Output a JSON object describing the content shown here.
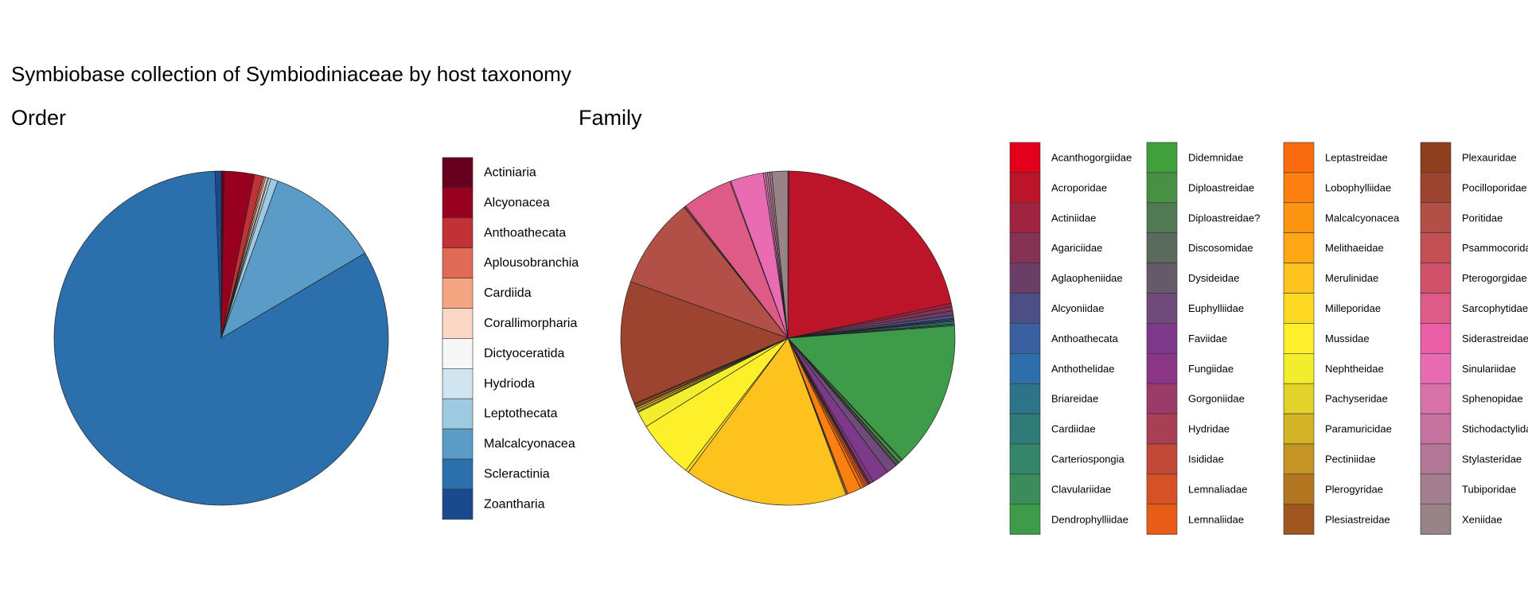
{
  "title": "Symbiobase collection of Symbiodiniaceae by host taxonomy",
  "chart_data": [
    {
      "type": "pie",
      "title": "Order",
      "legend_placement": "right",
      "slices": [
        {
          "label": "Actiniaria",
          "value": 0.3,
          "color": "#67001f"
        },
        {
          "label": "Alcyonacea",
          "value": 2.9,
          "color": "#98001f"
        },
        {
          "label": "Anthoathecata",
          "value": 0.8,
          "color": "#c13236"
        },
        {
          "label": "Aplousobranchia",
          "value": 0.15,
          "color": "#df6a55"
        },
        {
          "label": "Cardiida",
          "value": 0.15,
          "color": "#f4a582"
        },
        {
          "label": "Corallimorpharia",
          "value": 0.2,
          "color": "#fbd7c4"
        },
        {
          "label": "Dictyoceratida",
          "value": 0.1,
          "color": "#f7f7f7"
        },
        {
          "label": "Hydrioda",
          "value": 0.2,
          "color": "#d1e5f0"
        },
        {
          "label": "Leptothecata",
          "value": 0.7,
          "color": "#9ecae1"
        },
        {
          "label": "Malcalcyonacea",
          "value": 11.0,
          "color": "#5b9bc8"
        },
        {
          "label": "Scleractinia",
          "value": 82.9,
          "color": "#2c6fad"
        },
        {
          "label": "Zoantharia",
          "value": 0.6,
          "color": "#1a4a8e"
        }
      ]
    },
    {
      "type": "pie",
      "title": "Family",
      "legend_placement": "right",
      "slices": [
        {
          "label": "Acanthogorgiidae",
          "value": 0.1,
          "color": "#e3001b"
        },
        {
          "label": "Acroporidae",
          "value": 21.0,
          "color": "#bc1428"
        },
        {
          "label": "Actiniidae",
          "value": 0.3,
          "color": "#a02341"
        },
        {
          "label": "Agariciidae",
          "value": 0.4,
          "color": "#853255"
        },
        {
          "label": "Aglaopheniidae",
          "value": 0.4,
          "color": "#6a3e67"
        },
        {
          "label": "Alcyoniidae",
          "value": 0.3,
          "color": "#4d4e85"
        },
        {
          "label": "Anthoathecata",
          "value": 0.1,
          "color": "#3a60a2"
        },
        {
          "label": "Anthothelidae",
          "value": 0.1,
          "color": "#2c6fab"
        },
        {
          "label": "Briareidae",
          "value": 0.1,
          "color": "#2d7389"
        },
        {
          "label": "Cardiidae",
          "value": 0.2,
          "color": "#2f7b78"
        },
        {
          "label": "Carteriospongia",
          "value": 0.1,
          "color": "#35856a"
        },
        {
          "label": "Clavulariidae",
          "value": 0.1,
          "color": "#3a8d5a"
        },
        {
          "label": "Dendrophylliidae",
          "value": 13.8,
          "color": "#3d9b4a"
        },
        {
          "label": "Didemnidae",
          "value": 0.1,
          "color": "#3fa03c"
        },
        {
          "label": "Diploastreidae",
          "value": 0.3,
          "color": "#489043"
        },
        {
          "label": "Diploastreidae?",
          "value": 0.1,
          "color": "#517a54"
        },
        {
          "label": "Discosomidae",
          "value": 0.2,
          "color": "#5b6a5e"
        },
        {
          "label": "Dysideidae",
          "value": 0.1,
          "color": "#655a68"
        },
        {
          "label": "Euphylliidae",
          "value": 1.0,
          "color": "#704a7a"
        },
        {
          "label": "Faviidae",
          "value": 1.6,
          "color": "#7d3a8a"
        },
        {
          "label": "Fungiidae",
          "value": 0.3,
          "color": "#8a3585"
        },
        {
          "label": "Gorgoniidae",
          "value": 0.1,
          "color": "#9a3b6a"
        },
        {
          "label": "Hydridae",
          "value": 0.1,
          "color": "#a93f55"
        },
        {
          "label": "Isididae",
          "value": 0.1,
          "color": "#c24838"
        },
        {
          "label": "Lemnaliadae",
          "value": 0.2,
          "color": "#d75126"
        },
        {
          "label": "Lemnaliidae",
          "value": 0.2,
          "color": "#e95c17"
        },
        {
          "label": "Leptastreidae",
          "value": 0.3,
          "color": "#fa6b0e"
        },
        {
          "label": "Lobophylliidae",
          "value": 1.3,
          "color": "#fb800f"
        },
        {
          "label": "Malcalcyonacea",
          "value": 0.1,
          "color": "#fc9412"
        },
        {
          "label": "Melithaeidae",
          "value": 0.1,
          "color": "#fda716"
        },
        {
          "label": "Merulinidae",
          "value": 15.4,
          "color": "#fec21e"
        },
        {
          "label": "Milleporidae",
          "value": 0.3,
          "color": "#fed924"
        },
        {
          "label": "Mussidae",
          "value": 5.5,
          "color": "#fdf02a"
        },
        {
          "label": "Nephtheidae",
          "value": 1.5,
          "color": "#f2ee2e"
        },
        {
          "label": "Pachyseridae",
          "value": 0.1,
          "color": "#e2d22a"
        },
        {
          "label": "Paramuricidae",
          "value": 0.2,
          "color": "#d3b427"
        },
        {
          "label": "Pectiniidae",
          "value": 0.2,
          "color": "#c59523"
        },
        {
          "label": "Plerogyridae",
          "value": 0.1,
          "color": "#b27520"
        },
        {
          "label": "Plesiastreidae",
          "value": 0.2,
          "color": "#a0561e"
        },
        {
          "label": "Plexauridae",
          "value": 0.1,
          "color": "#8e401e"
        },
        {
          "label": "Pocilloporidae",
          "value": 11.6,
          "color": "#9d4430"
        },
        {
          "label": "Poritidae",
          "value": 8.6,
          "color": "#b24f47"
        },
        {
          "label": "Psammocoridae",
          "value": 0.1,
          "color": "#c45054"
        },
        {
          "label": "Pterogorgidae",
          "value": 0.1,
          "color": "#d15268"
        },
        {
          "label": "Sarcophytidae",
          "value": 4.7,
          "color": "#de5a87"
        },
        {
          "label": "Siderastreidae",
          "value": 0.1,
          "color": "#e95ea5"
        },
        {
          "label": "Sinulariidae",
          "value": 3.1,
          "color": "#e96cb3"
        },
        {
          "label": "Sphenopidae",
          "value": 0.2,
          "color": "#da72aa"
        },
        {
          "label": "Stichodactylidae",
          "value": 0.2,
          "color": "#c6749f"
        },
        {
          "label": "Stylasteridae",
          "value": 0.2,
          "color": "#b37896"
        },
        {
          "label": "Tubiporidae",
          "value": 0.2,
          "color": "#a37e8e"
        },
        {
          "label": "Xeniidae",
          "value": 1.5,
          "color": "#988487"
        }
      ]
    }
  ]
}
